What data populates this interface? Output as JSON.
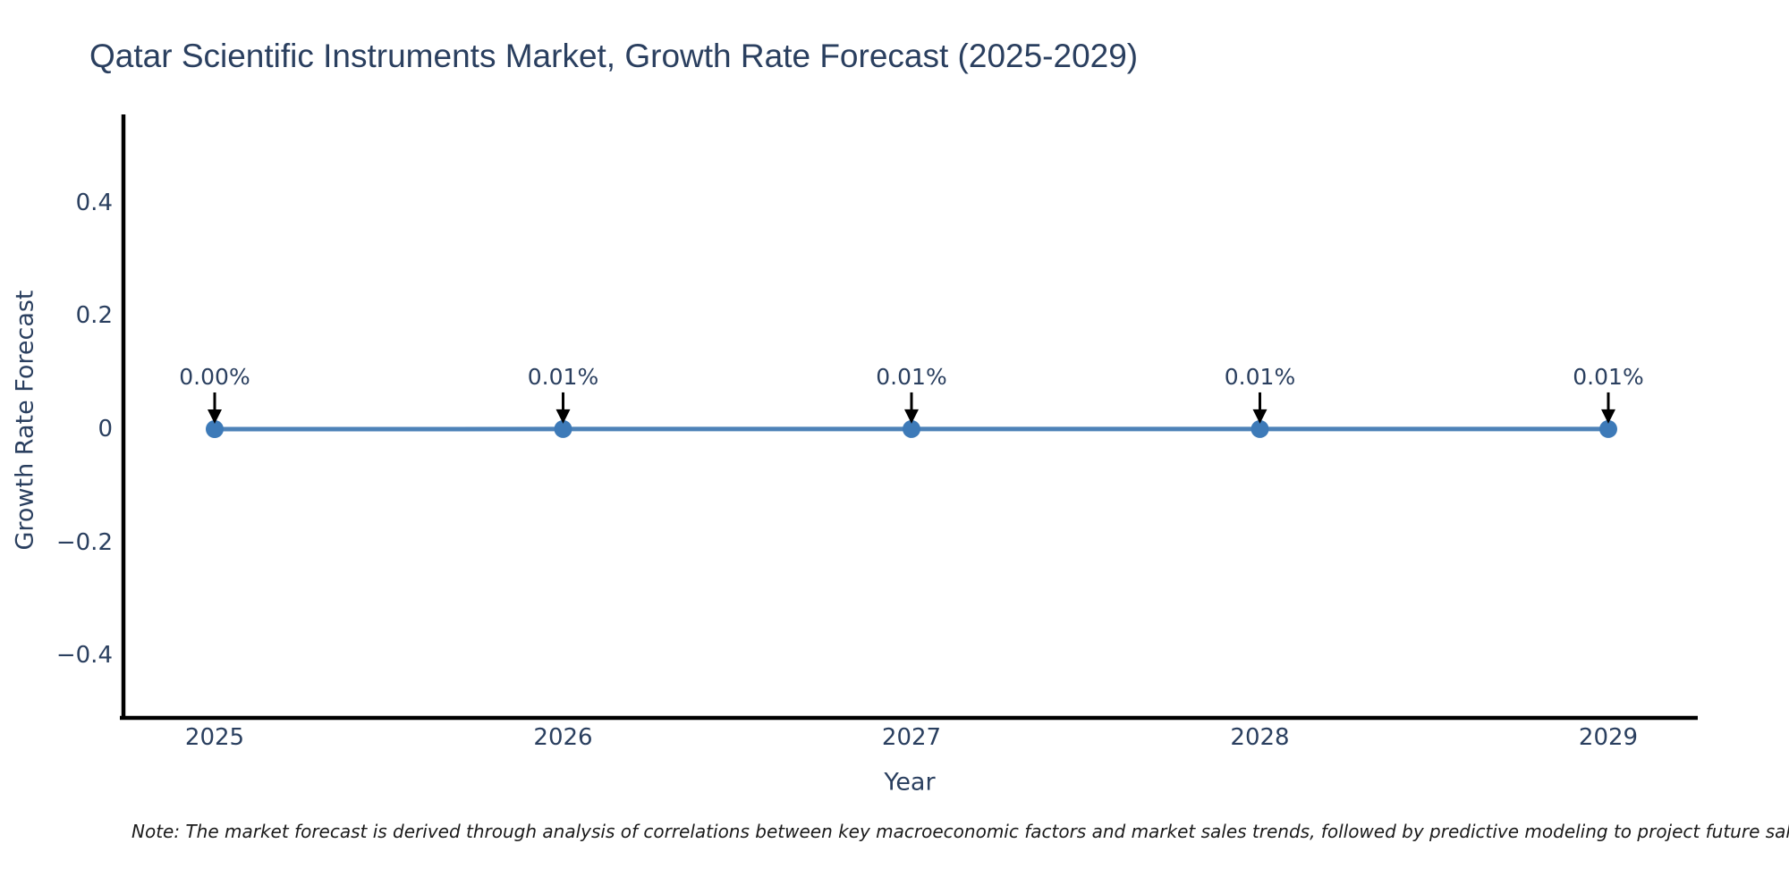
{
  "colors": {
    "background": "#ffffff",
    "text": "#2a3f5f",
    "line": "#4d82b8",
    "marker": "#3d7ab8",
    "axis": "#000000",
    "arrow": "#000000",
    "note_text": "#1a1a1a"
  },
  "chart_data": {
    "type": "line",
    "title": "Qatar Scientific Instruments Market, Growth Rate Forecast (2025-2029)",
    "xlabel": "Year",
    "ylabel": "Growth Rate Forecast",
    "x": [
      2025,
      2026,
      2027,
      2028,
      2029
    ],
    "xtick_labels": [
      "2025",
      "2026",
      "2027",
      "2028",
      "2029"
    ],
    "series": [
      {
        "name": "Growth Rate Forecast",
        "values_pct": [
          0.0,
          0.01,
          0.01,
          0.01,
          0.01
        ]
      }
    ],
    "point_labels": [
      "0.00%",
      "0.01%",
      "0.01%",
      "0.01%",
      "0.01%"
    ],
    "yticks": [
      0.4,
      0.2,
      0,
      -0.2,
      -0.4
    ],
    "ytick_labels": [
      "0.4",
      "0.2",
      "0",
      "−0.2",
      "−0.4"
    ],
    "ylim": [
      -0.51,
      0.56
    ],
    "grid": false,
    "legend": "none",
    "note": "Note: The market forecast is derived through analysis of correlations between key macroeconomic factors and market sales trends, followed by predictive modeling to project future sales."
  }
}
